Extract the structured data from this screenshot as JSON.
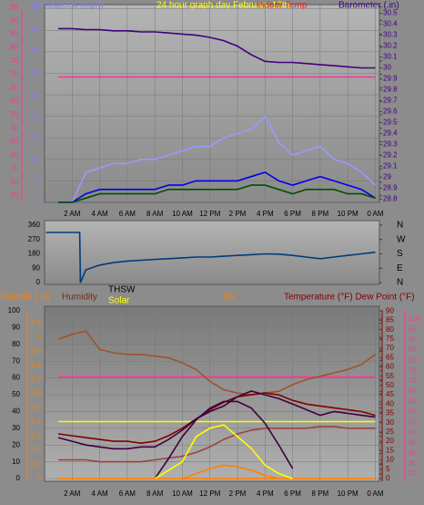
{
  "chart_data": [
    {
      "type": "line",
      "title": "24 hour graph day  February 12th",
      "ylabel": "Windspeed (mph)",
      "y2label": "Barometer (.in)",
      "y3label": "Indoor Temp",
      "x": [
        1,
        2,
        3,
        4,
        5,
        6,
        7,
        8,
        9,
        10,
        11,
        12,
        13,
        14,
        15,
        16,
        17,
        18,
        19,
        20,
        21,
        22,
        23,
        24
      ],
      "xlim": [
        0,
        24.3
      ],
      "xticks": [
        {
          "value": 2,
          "label": "2 AM"
        },
        {
          "value": 4,
          "label": "4 AM"
        },
        {
          "value": 6,
          "label": "6 AM"
        },
        {
          "value": 8,
          "label": "8 AM"
        },
        {
          "value": 10,
          "label": "10 AM"
        },
        {
          "value": 12,
          "label": "12 PM"
        },
        {
          "value": 14,
          "label": "2 PM"
        },
        {
          "value": 16,
          "label": "4 PM"
        },
        {
          "value": 18,
          "label": "6 PM"
        },
        {
          "value": 20,
          "label": "8 PM"
        },
        {
          "value": 22,
          "label": "10 PM"
        },
        {
          "value": 24,
          "label": "0 AM"
        }
      ],
      "ylim": [
        0,
        46
      ],
      "yticks": [
        0,
        5,
        10,
        15,
        20,
        25,
        30,
        35,
        40,
        45
      ],
      "y2lim": [
        28.77,
        30.58
      ],
      "y2ticks": [
        28.8,
        28.9,
        29,
        29.1,
        29.2,
        29.3,
        29.4,
        29.5,
        29.6,
        29.7,
        29.8,
        29.9,
        30,
        30.1,
        30.2,
        30.3,
        30.4,
        30.5
      ],
      "y3lim": [
        22.5,
        95.9
      ],
      "y3ticks": [
        25,
        30,
        35,
        40,
        45,
        50,
        55,
        60,
        65,
        70,
        75,
        80,
        85,
        90,
        95
      ],
      "grid": true,
      "series": [
        {
          "color": "#9999ff",
          "values": [
            0,
            0,
            7,
            8,
            9,
            9,
            10,
            10,
            11,
            12,
            13,
            13,
            15,
            16,
            17,
            20,
            14,
            11,
            12,
            13,
            10,
            9,
            7,
            4
          ]
        },
        {
          "color": "#0000ee",
          "values": [
            0,
            0,
            2,
            3,
            3,
            3,
            3,
            3,
            4,
            4,
            5,
            5,
            5,
            5,
            6,
            7,
            5,
            4,
            5,
            6,
            5,
            4,
            3,
            1
          ]
        },
        {
          "color": "#005000",
          "values": [
            0,
            0,
            1,
            2,
            2,
            2,
            2,
            2,
            3,
            3,
            3,
            3,
            3,
            3,
            4,
            4,
            3,
            2,
            3,
            3,
            3,
            2,
            2,
            1
          ]
        },
        {
          "color": "#ff3399",
          "axis": "y3",
          "values": [
            69,
            69,
            69,
            69,
            69,
            69,
            69,
            69,
            69,
            69,
            69,
            69,
            69,
            69,
            69,
            69,
            69,
            69,
            69,
            69,
            69,
            69,
            69,
            69
          ]
        },
        {
          "color": "#400080",
          "axis": "y2",
          "values": [
            30.36,
            30.36,
            30.35,
            30.35,
            30.34,
            30.34,
            30.33,
            30.33,
            30.32,
            30.31,
            30.3,
            30.28,
            30.25,
            30.2,
            30.12,
            30.06,
            30.05,
            30.05,
            30.04,
            30.03,
            30.02,
            30.01,
            30.0,
            30.0
          ]
        }
      ]
    },
    {
      "type": "line",
      "x": [
        0.1,
        2.55,
        2.6,
        3,
        4,
        5,
        6,
        7,
        8,
        9,
        10,
        11,
        12,
        13,
        14,
        15,
        16,
        17,
        18,
        19,
        20,
        21,
        22,
        23,
        24
      ],
      "xlim": [
        0,
        24.3
      ],
      "ylim": [
        -11,
        388
      ],
      "yticks": [
        0,
        90,
        180,
        270,
        360
      ],
      "y2lim": [
        -11,
        388
      ],
      "y2ticks": [
        {
          "value": 360,
          "label": "N"
        },
        {
          "value": 270,
          "label": "W"
        },
        {
          "value": 180,
          "label": "S"
        },
        {
          "value": 90,
          "label": "E"
        },
        {
          "value": 0,
          "label": "N"
        }
      ],
      "series": [
        {
          "color": "#003c78",
          "values": [
            314,
            314,
            0,
            80,
            110,
            125,
            135,
            140,
            145,
            150,
            155,
            160,
            160,
            165,
            170,
            175,
            180,
            178,
            170,
            160,
            150,
            160,
            170,
            180,
            190
          ]
        }
      ]
    },
    {
      "type": "line",
      "labels": [
        "Rainfall (.in)",
        "Humidity",
        "THSW",
        "Solar",
        "UV",
        "Temperature (°F) Dew Point (°F)"
      ],
      "x": [
        1,
        2,
        3,
        4,
        5,
        6,
        7,
        8,
        9,
        10,
        11,
        12,
        13,
        14,
        15,
        16,
        17,
        18,
        19,
        20,
        21,
        22,
        23,
        24
      ],
      "xlim": [
        0,
        24.3
      ],
      "xticks": [
        {
          "value": 2,
          "label": "2 AM"
        },
        {
          "value": 4,
          "label": "4 AM"
        },
        {
          "value": 6,
          "label": "6 AM"
        },
        {
          "value": 8,
          "label": "8 AM"
        },
        {
          "value": 10,
          "label": "10 AM"
        },
        {
          "value": 12,
          "label": "12 PM"
        },
        {
          "value": 14,
          "label": "2 PM"
        },
        {
          "value": 16,
          "label": "4 PM"
        },
        {
          "value": 18,
          "label": "6 PM"
        },
        {
          "value": 20,
          "label": "8 PM"
        },
        {
          "value": 22,
          "label": "10 PM"
        },
        {
          "value": 24,
          "label": "0 AM"
        }
      ],
      "ylim": [
        -1.6,
        102.7
      ],
      "yticks": [
        0,
        10,
        20,
        30,
        40,
        50,
        60,
        70,
        80,
        90,
        100
      ],
      "y2lim": [
        -0.019,
        1.22
      ],
      "y2ticks": [
        0,
        0.1,
        0.2,
        0.3,
        0.4,
        0.5,
        0.6,
        0.7,
        0.8,
        0.9,
        1,
        1.1
      ],
      "y3lim": [
        -1.5,
        92.6
      ],
      "y3ticks": [
        0,
        5,
        10,
        15,
        20,
        25,
        30,
        35,
        40,
        45,
        50,
        55,
        60,
        65,
        70,
        75,
        80,
        85,
        90
      ],
      "y4lim": [
        21.5,
        106.2
      ],
      "y4ticks": [
        25,
        30,
        35,
        40,
        45,
        50,
        55,
        60,
        65,
        70,
        75,
        80,
        85,
        90,
        95,
        100
      ],
      "grid": true,
      "series": [
        {
          "color": "#ff8000",
          "axis": "y2",
          "values": [
            0,
            0,
            0,
            0,
            0,
            0,
            0,
            0,
            0,
            0,
            0,
            0,
            0,
            0,
            0,
            0,
            0,
            0,
            0,
            0,
            0,
            0,
            0,
            0
          ]
        },
        {
          "color": "#ff3399",
          "axis": "y4",
          "values": [
            72,
            72,
            72,
            72,
            72,
            72,
            72,
            72,
            72,
            72,
            72,
            72,
            72,
            72,
            72,
            72,
            72,
            72,
            72,
            72,
            72,
            72,
            72,
            72
          ]
        },
        {
          "color": "#ffff00",
          "values": [
            34,
            34,
            34,
            34,
            34,
            34,
            34,
            34,
            34,
            34,
            34,
            34,
            34,
            34,
            34,
            34,
            34,
            34,
            34,
            34,
            34,
            34,
            34,
            34
          ]
        },
        {
          "color": "#a0522d",
          "values": [
            83,
            86,
            88,
            77,
            75,
            74,
            74,
            73,
            72,
            69,
            65,
            58,
            53,
            51,
            50,
            51,
            52,
            56,
            59,
            61,
            63,
            65,
            68,
            74
          ]
        },
        {
          "color": "#a04040",
          "axis": "y3",
          "values": [
            10,
            10,
            10,
            9,
            9,
            9,
            9,
            10,
            11,
            12,
            14,
            17,
            21,
            24,
            26,
            27,
            27,
            27,
            27,
            28,
            28,
            27,
            27,
            27
          ]
        },
        {
          "color": "#800000",
          "axis": "y3",
          "values": [
            24,
            23,
            22,
            21,
            20,
            20,
            19,
            20,
            23,
            27,
            32,
            37,
            41,
            44,
            45,
            46,
            45,
            42,
            40,
            39,
            38,
            37,
            36,
            34
          ]
        },
        {
          "color": "#400040",
          "values": [
            null,
            null,
            null,
            null,
            null,
            null,
            null,
            0,
            12,
            25,
            35,
            42,
            46,
            46,
            42,
            33,
            20,
            6,
            null,
            null,
            null,
            null,
            null,
            null
          ]
        },
        {
          "color": "#ff8000",
          "values": [
            null,
            null,
            null,
            null,
            null,
            null,
            null,
            null,
            null,
            0,
            3,
            6,
            8,
            7,
            5,
            2,
            0,
            null,
            null,
            null,
            null,
            null,
            null,
            null
          ]
        },
        {
          "color": "#ffff00",
          "values": [
            null,
            null,
            null,
            null,
            null,
            null,
            null,
            0,
            5,
            10,
            25,
            30,
            32,
            25,
            18,
            8,
            3,
            0,
            null,
            null,
            null,
            null,
            null,
            null
          ]
        },
        {
          "color": "#400040",
          "axis": "y3",
          "values": [
            22,
            20,
            18,
            17,
            16,
            16,
            17,
            17,
            21,
            26,
            32,
            36,
            39,
            44,
            47,
            45,
            43,
            40,
            37,
            34,
            36,
            35,
            34,
            33
          ]
        }
      ]
    }
  ]
}
